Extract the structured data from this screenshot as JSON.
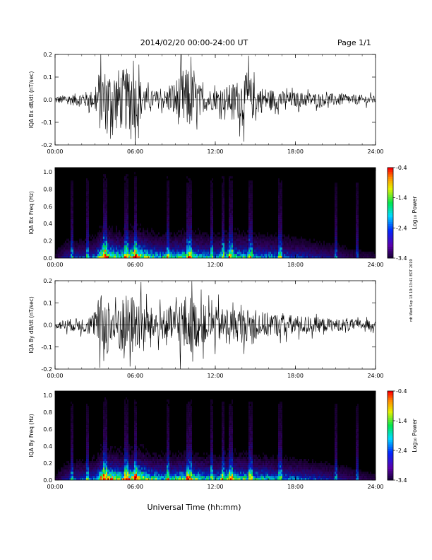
{
  "header": {
    "title": "2014/02/20  00:00-24:00 UT",
    "page": "Page 1/1"
  },
  "xlabel": "Universal Time (hh:mm)",
  "stamp": "rdt Wed Sep 18 19:13:41 EDT 2019",
  "colorbar": {
    "label": "Log₁₀ Power",
    "ticks": [
      "-0.4",
      "-1.4",
      "-2.4",
      "-3.4"
    ],
    "tick_values": [
      -0.4,
      -1.4,
      -2.4,
      -3.4
    ],
    "range": [
      -3.4,
      -0.4
    ]
  },
  "chart_data": [
    {
      "type": "line",
      "ylabel": "IQA Bx dB/dt (nT/sec)",
      "xlim": [
        0,
        24
      ],
      "ylim": [
        -0.2,
        0.2
      ],
      "x_ticks": [
        "00:00",
        "06:00",
        "12:00",
        "18:00",
        "24:00"
      ],
      "x_tick_values": [
        0,
        6,
        12,
        18,
        24
      ],
      "y_ticks": [
        "0.2",
        "0.1",
        "0.0",
        "-0.1",
        "-0.2"
      ],
      "y_tick_values": [
        0.2,
        0.1,
        0.0,
        -0.1,
        -0.2
      ],
      "envelope": {
        "x": [
          0,
          1,
          2,
          3,
          3.3,
          4,
          5,
          5.5,
          6,
          6.5,
          7,
          8,
          8.5,
          9,
          9.5,
          10,
          11,
          12,
          12.5,
          13,
          14,
          14.5,
          15,
          16,
          17,
          18,
          19,
          20,
          21,
          22,
          23,
          24
        ],
        "amplitude": [
          0.03,
          0.04,
          0.06,
          0.08,
          0.25,
          0.25,
          0.25,
          0.25,
          0.25,
          0.15,
          0.08,
          0.07,
          0.1,
          0.16,
          0.25,
          0.25,
          0.1,
          0.08,
          0.09,
          0.12,
          0.18,
          0.22,
          0.12,
          0.09,
          0.07,
          0.06,
          0.06,
          0.05,
          0.05,
          0.04,
          0.04,
          0.03
        ]
      }
    },
    {
      "type": "heatmap",
      "ylabel": "IQA Bx Freq (Hz)",
      "xlim": [
        0,
        24
      ],
      "ylim": [
        0,
        1.05
      ],
      "x_ticks": [
        "00:00",
        "06:00",
        "12:00",
        "18:00",
        "24:00"
      ],
      "x_tick_values": [
        0,
        6,
        12,
        18,
        24
      ],
      "y_ticks": [
        "1.0",
        "0.8",
        "0.6",
        "0.4",
        "0.2",
        "0.0"
      ],
      "y_tick_values": [
        1.0,
        0.8,
        0.6,
        0.4,
        0.2,
        0.0
      ],
      "value_range": [
        -3.4,
        -0.4
      ],
      "activity": {
        "x": [
          0,
          1,
          2,
          3,
          3.5,
          4,
          5,
          6,
          7,
          8,
          9,
          10,
          11,
          12,
          13,
          14,
          15,
          16,
          17,
          18,
          19,
          20,
          21,
          22,
          23,
          24
        ],
        "level": [
          0.1,
          0.3,
          0.3,
          0.4,
          0.9,
          0.8,
          0.6,
          0.9,
          0.6,
          0.5,
          0.55,
          0.65,
          0.5,
          0.45,
          0.6,
          0.55,
          0.5,
          0.45,
          0.4,
          0.35,
          0.3,
          0.25,
          0.2,
          0.15,
          0.12,
          0.1
        ]
      },
      "vertical_streaks_at": [
        1.2,
        2.4,
        3.7,
        5.3,
        6.0,
        8.4,
        9.9,
        10.1,
        11.7,
        12.5,
        13.1,
        14.6,
        16.8,
        21.0,
        22.6
      ]
    },
    {
      "type": "line",
      "ylabel": "IQA By dB/dt (nT/sec)",
      "xlim": [
        0,
        24
      ],
      "ylim": [
        -0.2,
        0.2
      ],
      "x_ticks": [
        "00:00",
        "06:00",
        "12:00",
        "18:00",
        "24:00"
      ],
      "x_tick_values": [
        0,
        6,
        12,
        18,
        24
      ],
      "y_ticks": [
        "0.2",
        "0.1",
        "0.0",
        "-0.1",
        "-0.2"
      ],
      "y_tick_values": [
        0.2,
        0.1,
        0.0,
        -0.1,
        -0.2
      ],
      "envelope": {
        "x": [
          0,
          1,
          2,
          3,
          3.3,
          4,
          5,
          6,
          7,
          8,
          9,
          9.5,
          10,
          11,
          12,
          13,
          14,
          15,
          16,
          17,
          18,
          19,
          20,
          21,
          22,
          23,
          24
        ],
        "amplitude": [
          0.03,
          0.05,
          0.06,
          0.1,
          0.25,
          0.25,
          0.25,
          0.25,
          0.15,
          0.12,
          0.18,
          0.25,
          0.25,
          0.16,
          0.15,
          0.13,
          0.14,
          0.12,
          0.1,
          0.09,
          0.08,
          0.07,
          0.06,
          0.05,
          0.05,
          0.04,
          0.04
        ]
      }
    },
    {
      "type": "heatmap",
      "ylabel": "IQA By Freq (Hz)",
      "xlim": [
        0,
        24
      ],
      "ylim": [
        0,
        1.05
      ],
      "x_ticks": [
        "00:00",
        "06:00",
        "12:00",
        "18:00",
        "24:00"
      ],
      "x_tick_values": [
        0,
        6,
        12,
        18,
        24
      ],
      "y_ticks": [
        "1.0",
        "0.8",
        "0.6",
        "0.4",
        "0.2",
        "0.0"
      ],
      "y_tick_values": [
        1.0,
        0.8,
        0.6,
        0.4,
        0.2,
        0.0
      ],
      "value_range": [
        -3.4,
        -0.4
      ],
      "activity": {
        "x": [
          0,
          1,
          2,
          3,
          3.5,
          4,
          5,
          6,
          7,
          8,
          9,
          10,
          11,
          12,
          13,
          14,
          15,
          16,
          17,
          18,
          19,
          20,
          21,
          22,
          23,
          24
        ],
        "level": [
          0.1,
          0.3,
          0.35,
          0.45,
          0.95,
          0.85,
          0.7,
          0.95,
          0.65,
          0.55,
          0.6,
          0.7,
          0.55,
          0.5,
          0.65,
          0.6,
          0.55,
          0.5,
          0.45,
          0.4,
          0.35,
          0.3,
          0.25,
          0.2,
          0.15,
          0.1
        ]
      },
      "vertical_streaks_at": [
        1.2,
        2.4,
        3.7,
        5.3,
        6.0,
        8.4,
        9.9,
        10.1,
        11.7,
        12.5,
        13.1,
        14.6,
        16.8,
        21.0,
        22.6
      ]
    }
  ]
}
